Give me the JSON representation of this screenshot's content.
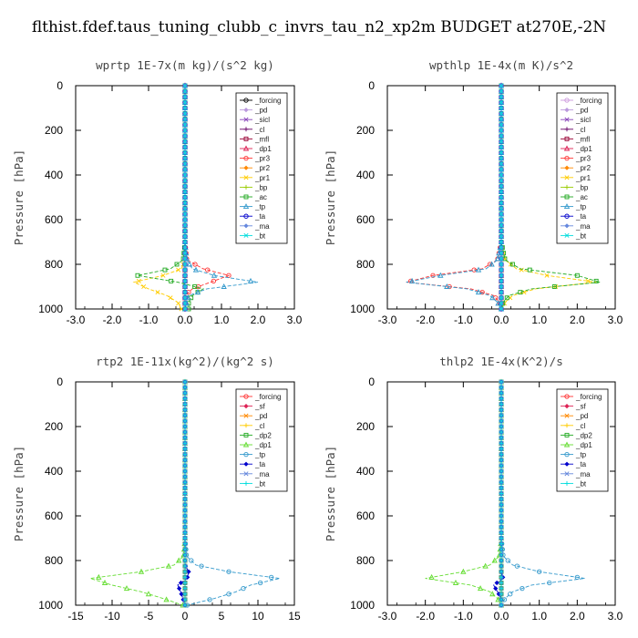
{
  "figure_title": "flthist.fdef.taus_tuning_clubb_c_invrs_tau_n2_xp2m  BUDGET at270E,-2N",
  "chart_data": [
    {
      "type": "line",
      "title": "wprtp  1E-7x(m kg)/(s^2 kg)",
      "ylabel": "Pressure [hPa]",
      "xlim": [
        -3,
        3
      ],
      "xticks": [
        "-3.0",
        "-2.0",
        "-1.0",
        "0.0",
        "1.0",
        "2.0",
        "3.0"
      ],
      "ylim": [
        0,
        1000
      ],
      "yticks": [
        "0",
        "200",
        "400",
        "600",
        "800",
        "1000"
      ],
      "y_inverted": true,
      "legend_position": "top-right",
      "pressure": [
        0,
        700,
        780,
        820,
        850,
        880,
        910,
        940,
        970,
        1000
      ],
      "series": [
        {
          "name": "_forcing",
          "color": "#000000",
          "values": [
            0,
            0,
            0,
            0,
            0,
            0,
            0,
            0,
            0,
            0
          ]
        },
        {
          "name": "_pd",
          "color": "#bb99dd",
          "values": [
            0,
            0,
            0,
            0,
            0,
            0,
            0,
            0,
            0,
            0
          ]
        },
        {
          "name": "_sicl",
          "color": "#8844bb",
          "values": [
            0,
            0,
            0,
            0,
            0,
            0,
            0,
            0,
            0,
            0
          ]
        },
        {
          "name": "_cl",
          "color": "#660066",
          "values": [
            0,
            0,
            0,
            0,
            0,
            0,
            0,
            0,
            0,
            0
          ]
        },
        {
          "name": "_mfl",
          "color": "#990033",
          "values": [
            0,
            0,
            0,
            0,
            0,
            0,
            0,
            0,
            0,
            0
          ]
        },
        {
          "name": "_dp1",
          "color": "#dd2255",
          "values": [
            0,
            0,
            0,
            0,
            0,
            0,
            0,
            0,
            0,
            0
          ]
        },
        {
          "name": "_pr3",
          "color": "#ff3333",
          "values": [
            0,
            0,
            0.05,
            0.5,
            1.2,
            0.7,
            0.2,
            0,
            0,
            0
          ]
        },
        {
          "name": "_pr2",
          "color": "#ff8800",
          "values": [
            0,
            0,
            0,
            0,
            0,
            0,
            0,
            0,
            0,
            0
          ]
        },
        {
          "name": "_pr1",
          "color": "#ffcc00",
          "values": [
            0,
            0,
            0,
            -0.1,
            -0.6,
            -1.4,
            -1.0,
            -0.5,
            -0.2,
            -0.1
          ]
        },
        {
          "name": "_bp",
          "color": "#99cc00",
          "values": [
            0,
            0,
            0,
            0,
            0,
            0,
            0,
            0,
            0,
            0
          ]
        },
        {
          "name": "_ac",
          "color": "#22aa22",
          "values": [
            0,
            0,
            -0.05,
            -0.4,
            -1.3,
            -0.2,
            0.5,
            0.2,
            0.1,
            0.1
          ]
        },
        {
          "name": "_tp",
          "color": "#3399cc",
          "values": [
            0,
            0,
            0.05,
            0.2,
            0.8,
            2.0,
            0.6,
            0.1,
            0.05,
            0
          ]
        },
        {
          "name": "_ta",
          "color": "#0000cc",
          "values": [
            0,
            0,
            0,
            0,
            0,
            0,
            0,
            0,
            0,
            0
          ]
        },
        {
          "name": "_ma",
          "color": "#6688dd",
          "values": [
            0,
            0,
            0,
            0,
            0,
            0,
            0,
            0,
            0,
            0
          ]
        },
        {
          "name": "_bt",
          "color": "#00dddd",
          "values": [
            0,
            0,
            0,
            0,
            0,
            0,
            0,
            0,
            0,
            0
          ]
        }
      ]
    },
    {
      "type": "line",
      "title": "wpthlp  1E-4x(m K)/s^2",
      "ylabel": "Pressure [hPa]",
      "xlim": [
        -3,
        3
      ],
      "xticks": [
        "-3.0",
        "-2.0",
        "-1.0",
        "0.0",
        "1.0",
        "2.0",
        "3.0"
      ],
      "ylim": [
        0,
        1000
      ],
      "yticks": [
        "0",
        "200",
        "400",
        "600",
        "800",
        "1000"
      ],
      "y_inverted": true,
      "legend_position": "top-right",
      "pressure": [
        0,
        700,
        780,
        820,
        850,
        880,
        910,
        940,
        970,
        1000
      ],
      "series": [
        {
          "name": "_forcing",
          "color": "#cc99dd",
          "values": [
            0,
            0,
            0,
            0,
            0,
            0,
            0,
            0,
            0,
            0
          ]
        },
        {
          "name": "_pd",
          "color": "#bb99dd",
          "values": [
            0,
            0,
            0,
            0,
            0,
            0,
            0,
            0,
            0,
            0
          ]
        },
        {
          "name": "_sicl",
          "color": "#8844bb",
          "values": [
            0,
            0,
            0,
            0,
            0,
            0,
            0,
            0,
            0,
            0
          ]
        },
        {
          "name": "_cl",
          "color": "#660066",
          "values": [
            0,
            0,
            0,
            0,
            0,
            0,
            0,
            0,
            0,
            0
          ]
        },
        {
          "name": "_mfl",
          "color": "#990033",
          "values": [
            0,
            0,
            0,
            0,
            0,
            0,
            0,
            0,
            0,
            0
          ]
        },
        {
          "name": "_dp1",
          "color": "#dd2255",
          "values": [
            0,
            0,
            0,
            0,
            0,
            0,
            0,
            0,
            0,
            0
          ]
        },
        {
          "name": "_pr3",
          "color": "#ff3333",
          "values": [
            0,
            0,
            -0.1,
            -0.5,
            -1.8,
            -2.5,
            -0.8,
            -0.2,
            -0.05,
            0
          ]
        },
        {
          "name": "_pr2",
          "color": "#ff8800",
          "values": [
            0,
            0,
            0,
            0,
            0,
            0,
            0,
            0,
            0,
            0
          ]
        },
        {
          "name": "_pr1",
          "color": "#ffcc00",
          "values": [
            0,
            0,
            0.1,
            0.4,
            1.2,
            2.5,
            0.9,
            0.3,
            0.1,
            0
          ]
        },
        {
          "name": "_bp",
          "color": "#99cc00",
          "values": [
            0,
            0,
            0,
            0,
            0,
            0,
            0,
            0,
            0,
            0
          ]
        },
        {
          "name": "_ac",
          "color": "#22aa22",
          "values": [
            0,
            0,
            0.1,
            0.5,
            2.0,
            2.6,
            0.8,
            0.2,
            0.05,
            0
          ]
        },
        {
          "name": "_tp",
          "color": "#3399cc",
          "values": [
            0,
            0,
            -0.1,
            -0.4,
            -1.6,
            -2.5,
            -0.9,
            -0.3,
            -0.1,
            0
          ]
        },
        {
          "name": "_ta",
          "color": "#0000cc",
          "values": [
            0,
            0,
            0,
            0,
            0,
            0,
            0,
            0,
            0,
            0
          ]
        },
        {
          "name": "_ma",
          "color": "#6688dd",
          "values": [
            0,
            0,
            0,
            0,
            0,
            0,
            0,
            0,
            0,
            0
          ]
        },
        {
          "name": "_bt",
          "color": "#00dddd",
          "values": [
            0,
            0,
            0,
            0,
            0,
            0,
            0,
            0,
            0,
            0
          ]
        }
      ]
    },
    {
      "type": "line",
      "title": "rtp2  1E-11x(kg^2)/(kg^2 s)",
      "ylabel": "Pressure [hPa]",
      "xlim": [
        -15,
        15
      ],
      "xticks": [
        "-15",
        "-10",
        "-5",
        "0",
        "5",
        "10",
        "15"
      ],
      "ylim": [
        0,
        1000
      ],
      "yticks": [
        "0",
        "200",
        "400",
        "600",
        "800",
        "1000"
      ],
      "y_inverted": true,
      "legend_position": "top-right",
      "pressure": [
        0,
        700,
        780,
        820,
        850,
        880,
        910,
        940,
        970,
        1000
      ],
      "series": [
        {
          "name": "_forcing",
          "color": "#ff3333",
          "values": [
            0,
            0,
            0,
            0,
            0,
            0,
            0,
            0,
            0,
            0
          ]
        },
        {
          "name": "_sf",
          "color": "#dd2255",
          "values": [
            0,
            0,
            0,
            0,
            0,
            0,
            0,
            0,
            0,
            0
          ]
        },
        {
          "name": "_pd",
          "color": "#ff8800",
          "values": [
            0,
            0,
            0,
            0,
            0,
            0,
            0,
            0,
            0,
            0
          ]
        },
        {
          "name": "_cl",
          "color": "#ffcc00",
          "values": [
            0,
            0,
            0,
            0,
            0,
            0,
            0,
            0,
            0,
            0
          ]
        },
        {
          "name": "_dp2",
          "color": "#22aa22",
          "values": [
            0,
            0,
            0,
            0,
            0,
            0,
            0,
            0,
            0,
            0
          ]
        },
        {
          "name": "_dp1",
          "color": "#66dd33",
          "values": [
            0,
            0,
            -0.2,
            -1.5,
            -6,
            -13,
            -10,
            -6,
            -3,
            -0.3
          ]
        },
        {
          "name": "_tp",
          "color": "#3399cc",
          "values": [
            0,
            0,
            0.2,
            1.5,
            6,
            13,
            9,
            7,
            4,
            0.3
          ]
        },
        {
          "name": "_ta",
          "color": "#0000cc",
          "values": [
            0,
            0,
            0,
            0,
            0.5,
            0.3,
            -1.0,
            -0.6,
            -0.3,
            0
          ]
        },
        {
          "name": "_ma",
          "color": "#6688dd",
          "values": [
            0,
            0,
            0,
            0,
            0,
            0,
            0,
            0,
            0,
            0
          ]
        },
        {
          "name": "_bt",
          "color": "#00dddd",
          "values": [
            0,
            0,
            0,
            0,
            0,
            0,
            0,
            0,
            0,
            0
          ]
        }
      ]
    },
    {
      "type": "line",
      "title": "thlp2  1E-4x(K^2)/s",
      "ylabel": "Pressure [hPa]",
      "xlim": [
        -3,
        3
      ],
      "xticks": [
        "-3.0",
        "-2.0",
        "-1.0",
        "0.0",
        "1.0",
        "2.0",
        "3.0"
      ],
      "ylim": [
        0,
        1000
      ],
      "yticks": [
        "0",
        "200",
        "400",
        "600",
        "800",
        "1000"
      ],
      "y_inverted": true,
      "legend_position": "top-right",
      "pressure": [
        0,
        700,
        780,
        820,
        850,
        880,
        910,
        940,
        970,
        1000
      ],
      "series": [
        {
          "name": "_forcing",
          "color": "#ff3333",
          "values": [
            0,
            0,
            0,
            0,
            0,
            0,
            0,
            0,
            0,
            0
          ]
        },
        {
          "name": "_sf",
          "color": "#dd2255",
          "values": [
            0,
            0,
            0,
            0,
            0,
            0,
            0,
            0,
            0,
            0
          ]
        },
        {
          "name": "_pd",
          "color": "#ff8800",
          "values": [
            0,
            0,
            0,
            0,
            0,
            0,
            0,
            0,
            0,
            0
          ]
        },
        {
          "name": "_cl",
          "color": "#ffcc00",
          "values": [
            0,
            0,
            0,
            0,
            0,
            0,
            0,
            0,
            0,
            0
          ]
        },
        {
          "name": "_dp2",
          "color": "#22aa22",
          "values": [
            0,
            0,
            0,
            0,
            0,
            0,
            0,
            0,
            0,
            0
          ]
        },
        {
          "name": "_dp1",
          "color": "#66dd33",
          "values": [
            0,
            0,
            -0.05,
            -0.3,
            -1.0,
            -2.0,
            -0.8,
            -0.3,
            -0.1,
            0
          ]
        },
        {
          "name": "_tp",
          "color": "#3399cc",
          "values": [
            0,
            0,
            0.05,
            0.3,
            1.0,
            2.2,
            0.8,
            0.3,
            0.1,
            0
          ]
        },
        {
          "name": "_ta",
          "color": "#0000cc",
          "values": [
            0,
            0,
            0,
            0,
            0,
            0.05,
            -0.2,
            -0.1,
            0,
            0
          ]
        },
        {
          "name": "_ma",
          "color": "#6688dd",
          "values": [
            0,
            0,
            0,
            0,
            0,
            0,
            0,
            0,
            0,
            0
          ]
        },
        {
          "name": "_bt",
          "color": "#00dddd",
          "values": [
            0,
            0,
            0,
            0,
            0,
            0,
            0,
            0,
            0,
            0
          ]
        }
      ]
    }
  ]
}
